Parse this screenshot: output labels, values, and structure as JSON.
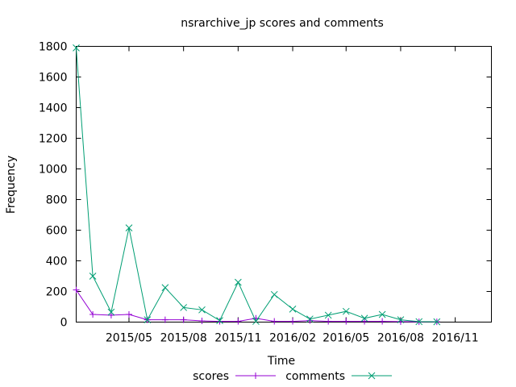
{
  "chart_data": {
    "type": "line",
    "title": "nsrarchive_jp scores and comments",
    "xlabel": "Time",
    "ylabel": "Frequency",
    "ylim": [
      0,
      1800
    ],
    "yticks": [
      "0",
      "200",
      "400",
      "600",
      "800",
      "1000",
      "1200",
      "1400",
      "1600",
      "1800"
    ],
    "xlim": [
      "2015-02-01",
      "2017-01-01"
    ],
    "xticks": [
      {
        "date": "2015-05-01",
        "label": "2015/05"
      },
      {
        "date": "2015-08-01",
        "label": "2015/08"
      },
      {
        "date": "2015-11-01",
        "label": "2015/11"
      },
      {
        "date": "2016-02-01",
        "label": "2016/02"
      },
      {
        "date": "2016-05-01",
        "label": "2016/05"
      },
      {
        "date": "2016-08-01",
        "label": "2016/08"
      },
      {
        "date": "2016-11-01",
        "label": "2016/11"
      }
    ],
    "grid": false,
    "legend_position": "bottom",
    "x": [
      "2015-02-01",
      "2015-03-01",
      "2015-04-01",
      "2015-05-01",
      "2015-06-01",
      "2015-07-01",
      "2015-08-01",
      "2015-09-01",
      "2015-10-01",
      "2015-11-01",
      "2015-12-01",
      "2016-01-01",
      "2016-02-01",
      "2016-03-01",
      "2016-04-01",
      "2016-05-01",
      "2016-06-01",
      "2016-07-01",
      "2016-08-01",
      "2016-09-01",
      "2016-10-01"
    ],
    "series": [
      {
        "name": "scores",
        "color": "#9400d3",
        "marker": "+",
        "values": [
          210,
          50,
          45,
          50,
          15,
          15,
          15,
          8,
          5,
          5,
          25,
          5,
          5,
          10,
          5,
          5,
          5,
          5,
          3,
          2,
          2
        ]
      },
      {
        "name": "comments",
        "color": "#009e73",
        "marker": "x",
        "values": [
          1790,
          300,
          65,
          615,
          15,
          225,
          95,
          80,
          10,
          260,
          5,
          180,
          85,
          20,
          45,
          70,
          25,
          50,
          15,
          3,
          2
        ]
      }
    ]
  }
}
